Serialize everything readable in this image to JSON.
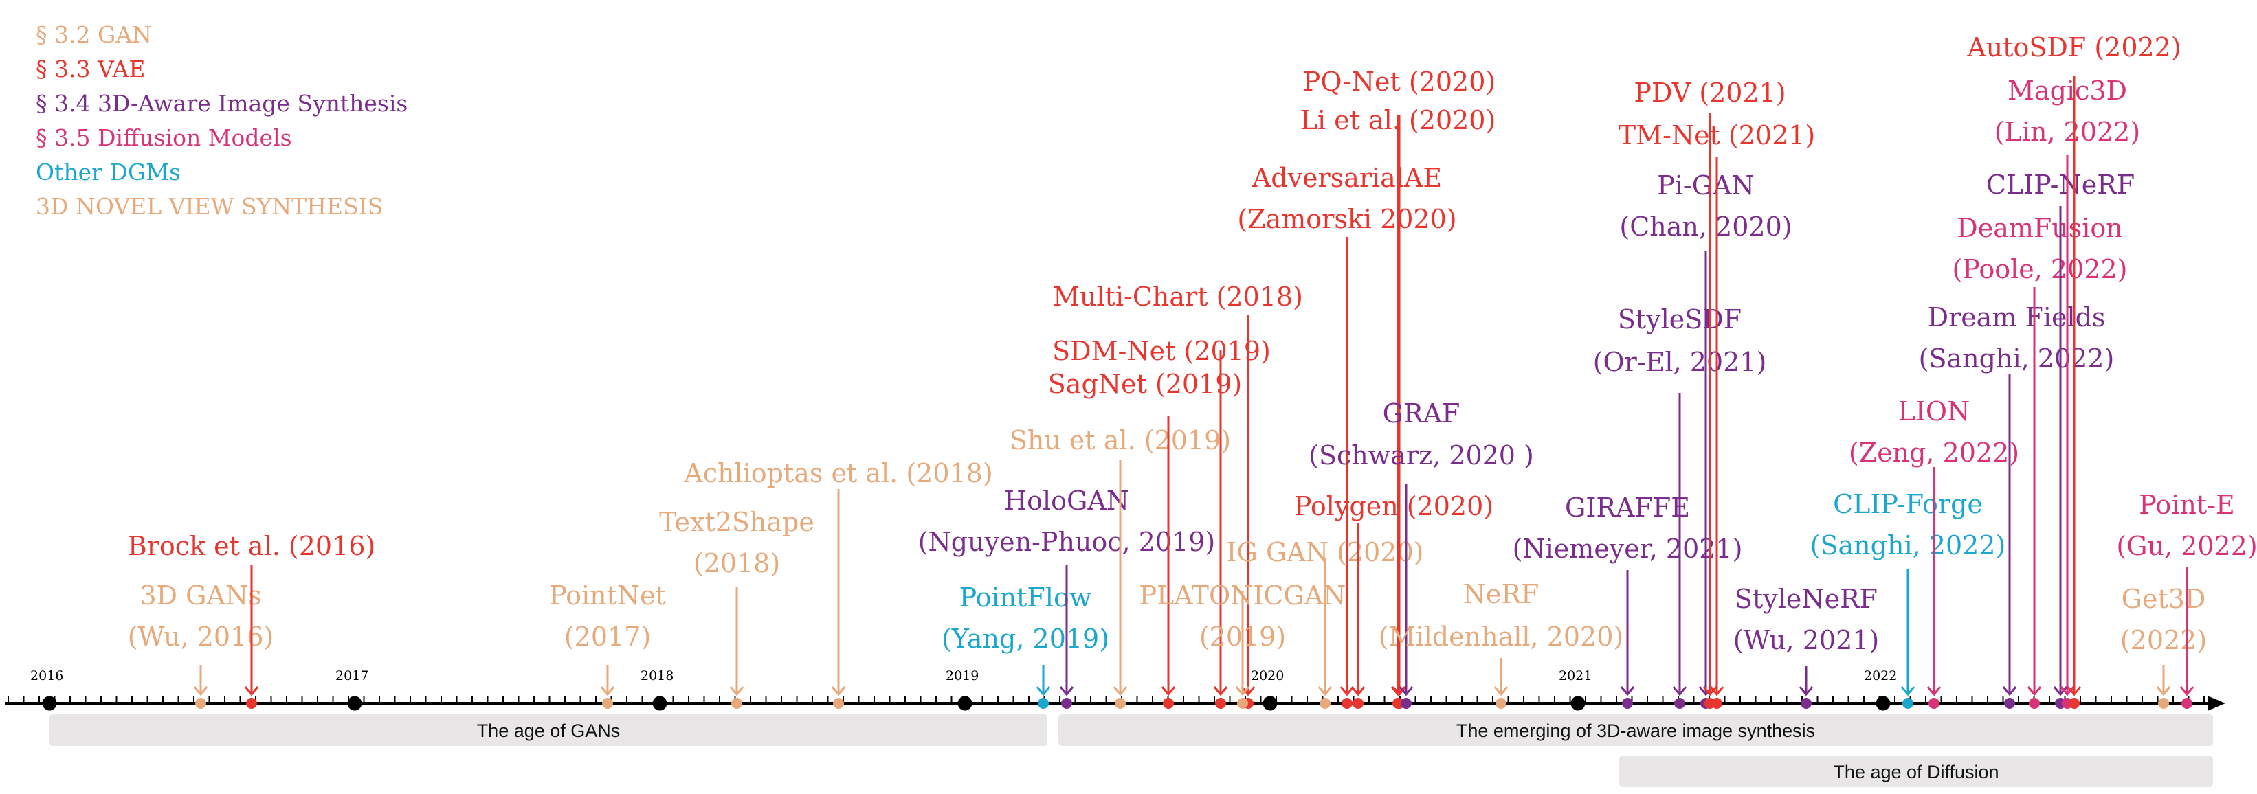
{
  "colors": {
    "gan": "#e8a97a",
    "vae": "#e8352e",
    "aware": "#7b2d8e",
    "diffusion": "#d93277",
    "other": "#1aa7cf",
    "nvs": "#e8a97a",
    "axis": "#000000",
    "band": "#e8e6e6"
  },
  "legend": [
    {
      "label": "§ 3.2 GAN",
      "color": "gan"
    },
    {
      "label": "§ 3.3 VAE",
      "color": "vae"
    },
    {
      "label": "§ 3.4 3D-Aware Image Synthesis",
      "color": "aware"
    },
    {
      "label": "§ 3.5 Diffusion Models",
      "color": "diffusion"
    },
    {
      "label": "Other DGMs",
      "color": "other"
    },
    {
      "label": "3D NOVEL VIEW SYNTHESIS",
      "color": "nvs"
    }
  ],
  "years": [
    "2016",
    "2017",
    "2018",
    "2019",
    "2020",
    "2021",
    "2022"
  ],
  "eras": [
    {
      "label": "The age of GANs"
    },
    {
      "label": "The emerging of 3D-aware image synthesis"
    },
    {
      "label": "The age of Diffusion"
    }
  ],
  "events": [
    {
      "lines": [
        "3D GANs",
        "(Wu, 2016)"
      ],
      "color": "gan"
    },
    {
      "lines": [
        "Brock et al. (2016)"
      ],
      "color": "vae"
    },
    {
      "lines": [
        "PointNet",
        "(2017)"
      ],
      "color": "gan"
    },
    {
      "lines": [
        "Text2Shape",
        "(2018)"
      ],
      "color": "gan"
    },
    {
      "lines": [
        "Achlioptas et al. (2018)"
      ],
      "color": "gan"
    },
    {
      "lines": [
        "PointFlow",
        "(Yang, 2019)"
      ],
      "color": "other"
    },
    {
      "lines": [
        "HoloGAN",
        "(Nguyen-Phuoc, 2019)"
      ],
      "color": "aware"
    },
    {
      "lines": [
        "Shu et al. (2019)"
      ],
      "color": "gan"
    },
    {
      "lines": [
        "SagNet (2019)"
      ],
      "color": "vae"
    },
    {
      "lines": [
        "SDM-Net (2019)"
      ],
      "color": "vae"
    },
    {
      "lines": [
        "Multi-Chart (2018)"
      ],
      "color": "vae"
    },
    {
      "lines": [
        "PLATONICGAN",
        "(2019)"
      ],
      "color": "gan"
    },
    {
      "lines": [
        "IG GAN (2020)"
      ],
      "color": "gan"
    },
    {
      "lines": [
        "AdversarialAE",
        "(Zamorski 2020)"
      ],
      "color": "vae"
    },
    {
      "lines": [
        "Polygen (2020)"
      ],
      "color": "vae"
    },
    {
      "lines": [
        "Li et al. (2020)"
      ],
      "color": "vae"
    },
    {
      "lines": [
        "PQ-Net (2020)"
      ],
      "color": "vae"
    },
    {
      "lines": [
        "GRAF",
        "(Schwarz, 2020 )"
      ],
      "color": "aware"
    },
    {
      "lines": [
        "NeRF",
        "(Mildenhall, 2020)"
      ],
      "color": "nvs"
    },
    {
      "lines": [
        "GIRAFFE",
        "(Niemeyer, 2021)"
      ],
      "color": "aware"
    },
    {
      "lines": [
        "StyleSDF",
        "(Or-El, 2021)"
      ],
      "color": "aware"
    },
    {
      "lines": [
        "Pi-GAN",
        "(Chan, 2020)"
      ],
      "color": "aware"
    },
    {
      "lines": [
        "PDV (2021)"
      ],
      "color": "vae"
    },
    {
      "lines": [
        "TM-Net (2021)"
      ],
      "color": "vae"
    },
    {
      "lines": [
        "StyleNeRF",
        "(Wu, 2021)"
      ],
      "color": "aware"
    },
    {
      "lines": [
        "CLIP-Forge",
        "(Sanghi, 2022)"
      ],
      "color": "other"
    },
    {
      "lines": [
        "LION",
        "(Zeng, 2022)"
      ],
      "color": "diffusion"
    },
    {
      "lines": [
        "Dream Fields",
        "(Sanghi, 2022)"
      ],
      "color": "aware"
    },
    {
      "lines": [
        "DeamFusion",
        "(Poole, 2022)"
      ],
      "color": "diffusion"
    },
    {
      "lines": [
        "CLIP-NeRF"
      ],
      "color": "aware"
    },
    {
      "lines": [
        "Magic3D",
        "(Lin, 2022)"
      ],
      "color": "diffusion"
    },
    {
      "lines": [
        "AutoSDF (2022)"
      ],
      "color": "vae"
    },
    {
      "lines": [
        "Get3D",
        "(2022)"
      ],
      "color": "gan"
    },
    {
      "lines": [
        "Point-E",
        "(Gu, 2022)"
      ],
      "color": "diffusion"
    }
  ]
}
